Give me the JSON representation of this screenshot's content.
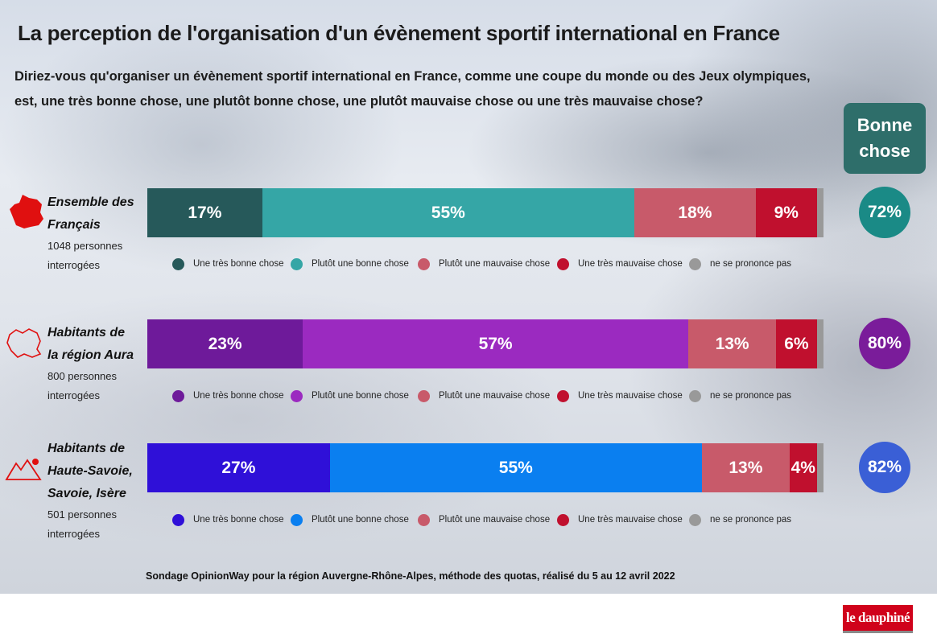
{
  "title": "La perception de l'organisation d'un évènement sportif international en France",
  "subtitle": [
    "Diriez-vous qu'organiser un évènement sportif international en France, comme une coupe du monde ou des Jeux olympiques,",
    "est, une très bonne chose, une plutôt bonne chose, une plutôt mauvaise chose ou une très mauvaise chose?"
  ],
  "bonne_chose": {
    "title": "Bonne chose",
    "values": [
      72,
      80,
      82
    ],
    "value_labels": [
      "72%",
      "80%",
      "82%"
    ],
    "colors": [
      "#1a8a86",
      "#7a1c9a",
      "#3a5fd6"
    ]
  },
  "chart_data": [
    {
      "type": "bar",
      "orientation": "horizontal",
      "stacked": true,
      "categories": [
        "Ensemble des Français"
      ],
      "subtitle": "1048 personnes interrogées",
      "series": [
        {
          "name": "Une très bonne chose",
          "color": "#26595a",
          "values": [
            17
          ],
          "value_labels": [
            "17%"
          ]
        },
        {
          "name": "Plutôt une bonne chose",
          "color": "#35a6a6",
          "values": [
            55
          ],
          "value_labels": [
            "55%"
          ]
        },
        {
          "name": "Plutôt une mauvaise chose",
          "color": "#c85a6a",
          "values": [
            18
          ],
          "value_labels": [
            "18%"
          ]
        },
        {
          "name": "Une très mauvaise chose",
          "color": "#c0102e",
          "values": [
            9
          ],
          "value_labels": [
            "9%"
          ]
        },
        {
          "name": "ne se prononce pas",
          "color": "#999999",
          "values": [
            1
          ],
          "value_labels": [
            null
          ]
        }
      ]
    },
    {
      "type": "bar",
      "orientation": "horizontal",
      "stacked": true,
      "categories": [
        "Habitants de la région Aura"
      ],
      "subtitle": "800 personnes interrogées",
      "series": [
        {
          "name": "Une très bonne chose",
          "color": "#6e1a9a",
          "values": [
            23
          ],
          "value_labels": [
            "23%"
          ]
        },
        {
          "name": "Plutôt une bonne chose",
          "color": "#9b2ac0",
          "values": [
            57
          ],
          "value_labels": [
            "57%"
          ]
        },
        {
          "name": "Plutôt une mauvaise chose",
          "color": "#c85a6a",
          "values": [
            13
          ],
          "value_labels": [
            "13%"
          ]
        },
        {
          "name": "Une très mauvaise chose",
          "color": "#c0102e",
          "values": [
            6
          ],
          "value_labels": [
            "6%"
          ]
        },
        {
          "name": "ne se prononce pas",
          "color": "#999999",
          "values": [
            1
          ],
          "value_labels": [
            null
          ]
        }
      ]
    },
    {
      "type": "bar",
      "orientation": "horizontal",
      "stacked": true,
      "categories": [
        "Habitants de Haute-Savoie, Savoie, Isère"
      ],
      "subtitle": "501 personnes interrogées",
      "series": [
        {
          "name": "Une très bonne chose",
          "color": "#2f10d8",
          "values": [
            27
          ],
          "value_labels": [
            "27%"
          ]
        },
        {
          "name": "Plutôt une bonne chose",
          "color": "#0a7ff0",
          "values": [
            55
          ],
          "value_labels": [
            "55%"
          ]
        },
        {
          "name": "Plutôt une mauvaise chose",
          "color": "#c85a6a",
          "values": [
            13
          ],
          "value_labels": [
            "13%"
          ]
        },
        {
          "name": "Une très mauvaise chose",
          "color": "#c0102e",
          "values": [
            4
          ],
          "value_labels": [
            "4%"
          ]
        },
        {
          "name": "ne se prononce pas",
          "color": "#999999",
          "values": [
            1
          ],
          "value_labels": [
            null
          ]
        }
      ]
    }
  ],
  "source": "Sondage OpinionWay pour la région Auvergne-Rhône-Alpes, méthode des quotas, réalisé du 5 au 12 avril 2022",
  "logo": "le dauphiné"
}
